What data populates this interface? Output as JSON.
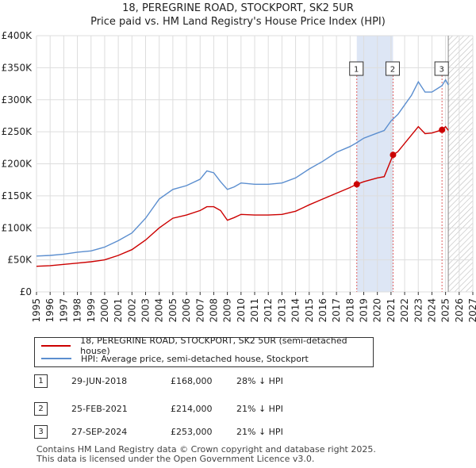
{
  "chart_data": {
    "type": "line",
    "title": "18, PEREGRINE ROAD, STOCKPORT, SK2 5UR",
    "subtitle": "Price paid vs. HM Land Registry's House Price Index (HPI)",
    "xlabel": "",
    "ylabel": "",
    "xlim": [
      1995,
      2027
    ],
    "ylim": [
      0,
      400000
    ],
    "x_ticks": [
      "1995",
      "1996",
      "1997",
      "1998",
      "1999",
      "2000",
      "2001",
      "2002",
      "2003",
      "2004",
      "2005",
      "2006",
      "2007",
      "2008",
      "2009",
      "2010",
      "2011",
      "2012",
      "2013",
      "2014",
      "2015",
      "2016",
      "2017",
      "2018",
      "2019",
      "2020",
      "2021",
      "2022",
      "2023",
      "2024",
      "2025",
      "2026",
      "2027"
    ],
    "y_ticks": [
      {
        "value": 0,
        "label": "£0"
      },
      {
        "value": 50000,
        "label": "£50K"
      },
      {
        "value": 100000,
        "label": "£100K"
      },
      {
        "value": 150000,
        "label": "£150K"
      },
      {
        "value": 200000,
        "label": "£200K"
      },
      {
        "value": 250000,
        "label": "£250K"
      },
      {
        "value": 300000,
        "label": "£300K"
      },
      {
        "value": 350000,
        "label": "£350K"
      },
      {
        "value": 400000,
        "label": "£400K"
      }
    ],
    "series": [
      {
        "name": "18, PEREGRINE ROAD, STOCKPORT, SK2 5UR (semi-detached house)",
        "color": "#cc0000",
        "x": [
          1995,
          1996,
          1997,
          1998,
          1999,
          2000,
          2001,
          2002,
          2003,
          2004,
          2005,
          2006,
          2007,
          2007.5,
          2008,
          2008.5,
          2009,
          2009.5,
          2010,
          2011,
          2012,
          2013,
          2014,
          2015,
          2016,
          2017,
          2018,
          2018.49,
          2019,
          2020,
          2020.5,
          2021.15,
          2021.5,
          2022,
          2022.5,
          2023,
          2023.5,
          2024,
          2024.74,
          2025,
          2025.2
        ],
        "y": [
          40000,
          41000,
          43000,
          45000,
          47000,
          50000,
          57000,
          66000,
          81000,
          100000,
          115000,
          120000,
          127000,
          133000,
          133000,
          127000,
          112000,
          116000,
          121000,
          120000,
          120000,
          121000,
          126000,
          136000,
          145000,
          154000,
          163000,
          168000,
          172000,
          178000,
          180000,
          214000,
          219000,
          232000,
          245000,
          258000,
          247000,
          248000,
          253000,
          258000,
          252000
        ]
      },
      {
        "name": "HPI: Average price, semi-detached house, Stockport",
        "color": "#5b8ecf",
        "x": [
          1995,
          1996,
          1997,
          1998,
          1999,
          2000,
          2001,
          2002,
          2003,
          2004,
          2005,
          2006,
          2007,
          2007.5,
          2008,
          2008.5,
          2009,
          2009.5,
          2010,
          2011,
          2012,
          2013,
          2014,
          2015,
          2016,
          2017,
          2018,
          2018.49,
          2019,
          2020,
          2020.5,
          2021,
          2021.5,
          2022,
          2022.5,
          2023,
          2023.5,
          2024,
          2024.74,
          2025,
          2025.2
        ],
        "y": [
          56000,
          57000,
          59000,
          62000,
          64000,
          70000,
          80000,
          92000,
          115000,
          145000,
          160000,
          166000,
          176000,
          189000,
          186000,
          172000,
          160000,
          164000,
          170000,
          168000,
          168000,
          170000,
          178000,
          192000,
          204000,
          218000,
          227000,
          233000,
          240000,
          248000,
          252000,
          267000,
          277000,
          292000,
          307000,
          328000,
          312000,
          312000,
          322000,
          331000,
          323000
        ]
      }
    ],
    "transactions": [
      {
        "id": "1",
        "date": "29-JUN-2018",
        "x": 2018.49,
        "price": 168000,
        "price_label": "£168,000",
        "hpi": "28% ↓ HPI"
      },
      {
        "id": "2",
        "date": "25-FEB-2021",
        "x": 2021.15,
        "price": 214000,
        "price_label": "£214,000",
        "hpi": "21% ↓ HPI"
      },
      {
        "id": "3",
        "date": "27-SEP-2024",
        "x": 2024.74,
        "price": 253000,
        "price_label": "£253,000",
        "hpi": "21% ↓ HPI"
      }
    ],
    "shaded_range": [
      2018.49,
      2021.15
    ],
    "forecast_start": 2025.2,
    "grid": true,
    "legend_position": "bottom"
  },
  "footer": {
    "line1": "Contains HM Land Registry data © Crown copyright and database right 2025.",
    "line2": "This data is licensed under the Open Government Licence v3.0."
  }
}
